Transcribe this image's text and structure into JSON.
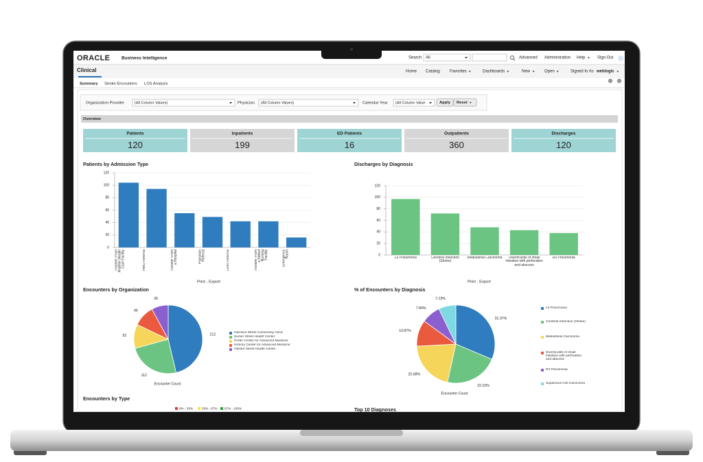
{
  "header": {
    "logo": "ORACLE",
    "product": "Business Intelligence",
    "search_label": "Search",
    "search_scope": "All",
    "links": [
      "Advanced",
      "Administration",
      "Help",
      "Sign Out"
    ]
  },
  "nav": {
    "page_title": "Clinical",
    "links": [
      "Home",
      "Catalog",
      "Favorites",
      "Dashboards",
      "New",
      "Open"
    ],
    "signed_in_label": "Signed In As",
    "user": "weblogic"
  },
  "tabs": [
    "Summary",
    "Stroke Encounters",
    "LOS Analysis"
  ],
  "filters": {
    "prompts": [
      {
        "label": "Organization Provider",
        "value": "(All Column Values)"
      },
      {
        "label": "Physician",
        "value": "(All Column Values)"
      },
      {
        "label": "Calendar Year",
        "value": "(All Column Value"
      }
    ],
    "buttons": [
      "Apply",
      "Reset"
    ]
  },
  "overview": {
    "title": "Overview",
    "kpis": [
      {
        "label": "Patients",
        "value": 120,
        "color": "#9fd4d4"
      },
      {
        "label": "Inpatients",
        "value": 199,
        "color": "#d6d6d6"
      },
      {
        "label": "ED Patients",
        "value": 16,
        "color": "#9fd4d4"
      },
      {
        "label": "Outpatients",
        "value": 360,
        "color": "#d6d6d6"
      },
      {
        "label": "Discharges",
        "value": 120,
        "color": "#9fd4d4"
      }
    ]
  },
  "chart_data": [
    {
      "type": "bar",
      "title": "Patients by Admission Type",
      "categories": [
        "Transfer From Another Health Care Facility",
        "HMO Referral",
        "Transfer From a Hospital",
        "Physician Referral",
        "Clinic Referral",
        "Transfer From a Skilled Nursing Facility",
        "Emergency Room"
      ],
      "values": [
        104,
        94,
        55,
        49,
        42,
        42,
        16
      ],
      "color": "#2f7cbf",
      "ylim": [
        0,
        120
      ],
      "yticks": [
        0,
        20,
        40,
        60,
        80,
        100,
        120
      ],
      "grid": true,
      "link": "Print - Export"
    },
    {
      "type": "bar",
      "title": "Discharges by Diagnosis",
      "categories": [
        "LII Pneumonia",
        "Cerebral Infarction (Stroke)",
        "Mediastinal Carcinoma",
        "Diverticulitis of small intestine with perforation and abscess",
        "RII Pneumonia"
      ],
      "values": [
        97,
        72,
        48,
        43,
        38
      ],
      "color": "#6cc483",
      "ylim": [
        0,
        120
      ],
      "yticks": [
        0,
        20,
        40,
        60,
        80,
        100,
        120
      ],
      "grid": true,
      "link": "Print - Export"
    },
    {
      "type": "pie",
      "title": "Encounters by Organization",
      "categories": [
        "Garrison Street Community Clinic",
        "Sumer Street Health Center",
        "Porter Center for Advanced Medicine",
        "Hickory Center for Advanced Medicine",
        "Olester Street Health Center"
      ],
      "values": [
        212,
        112,
        52,
        46,
        36
      ],
      "colors": [
        "#2f7cbf",
        "#6cc483",
        "#f5d65a",
        "#ea5a3f",
        "#8b5fcd"
      ],
      "footer": "Encounter Count"
    },
    {
      "type": "pie",
      "title": "% of Encounters by Diagnosis",
      "categories": [
        "LII Pneumonia",
        "Cerebral Infarction (Stroke)",
        "Mediastinal Carcinoma",
        "Diverticulitis of small intestine with perforation and abscess",
        "RII Pneumonia",
        "Squamous Cell Carcinoma"
      ],
      "values": [
        31.37,
        22.1,
        20.68,
        10.87,
        7.84,
        7.13
      ],
      "value_labels": [
        "31.37%",
        "22.10%",
        "20.68%",
        "10.87%",
        "7.84%",
        "7.13%"
      ],
      "colors": [
        "#2f7cbf",
        "#6cc483",
        "#f5d65a",
        "#ea5a3f",
        "#8b5fcd",
        "#7fd9e2"
      ],
      "footer": "Encounter Count"
    }
  ],
  "encounters_by_type": {
    "title": "Encounters by Type",
    "legend": [
      {
        "name": "0% - 33%",
        "color": "#e8322f"
      },
      {
        "name": "33% - 67%",
        "color": "#f5e04a"
      },
      {
        "name": "67% - 100%",
        "color": "#2f9e3a"
      }
    ]
  },
  "top_diagnoses": {
    "title": "Top 10 Diagnoses"
  }
}
